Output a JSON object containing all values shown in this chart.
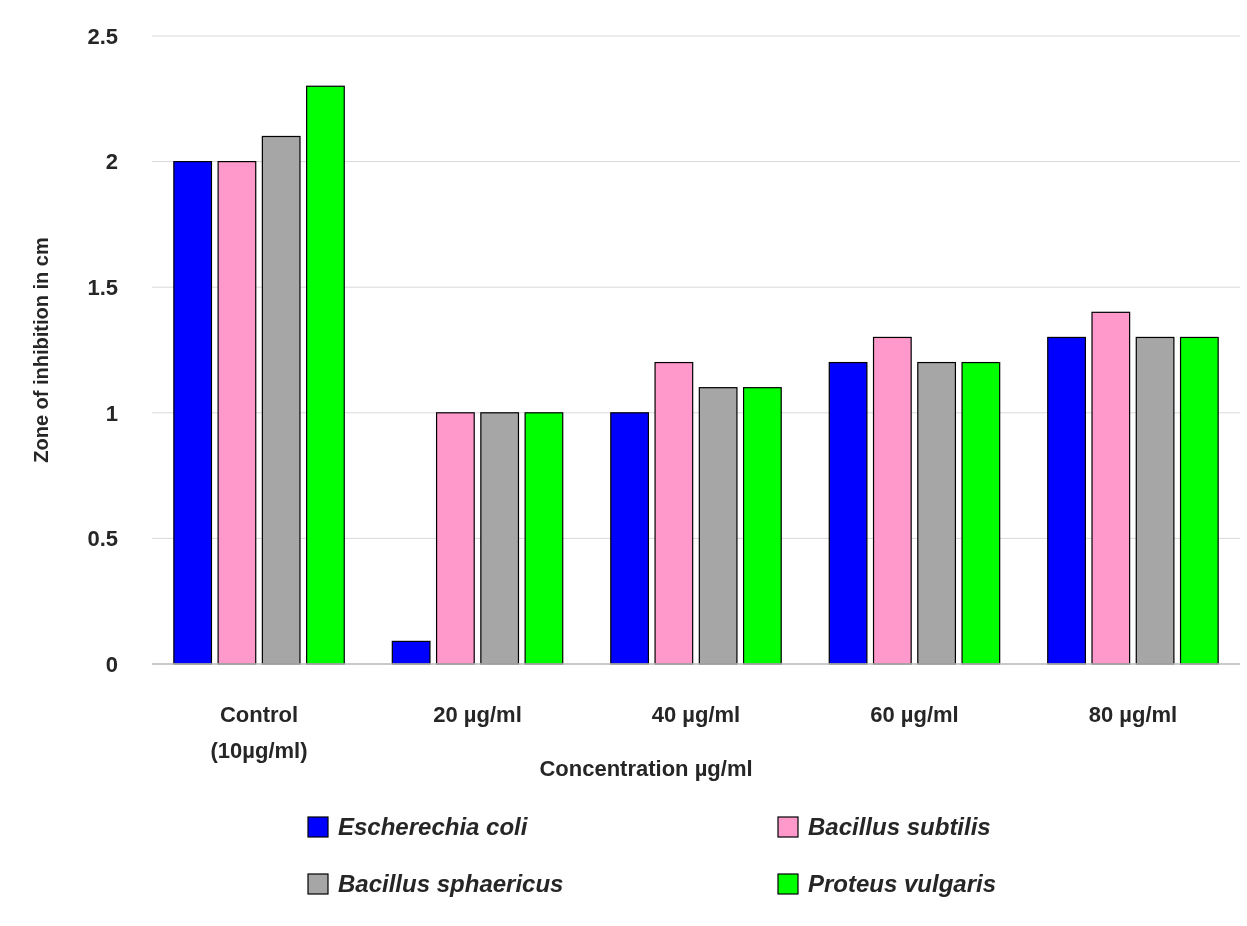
{
  "chart_data": {
    "type": "bar",
    "xlabel": "Concentration µg/ml",
    "ylabel": "Zone of inhibition in cm",
    "categories": [
      "Control (10µg/ml)",
      "20 µg/ml",
      "40 µg/ml",
      "60 µg/ml",
      "80 µg/ml"
    ],
    "series": [
      {
        "name": "Escherechia coli",
        "color": "#0000ff",
        "values": [
          2,
          0.09,
          1,
          1.2,
          1.3
        ]
      },
      {
        "name": "Bacillus subtilis",
        "color": "#ff99cc",
        "values": [
          2,
          1,
          1.2,
          1.3,
          1.4
        ]
      },
      {
        "name": "Bacillus sphaericus",
        "color": "#a6a6a6",
        "values": [
          2.1,
          1,
          1.1,
          1.2,
          1.3
        ]
      },
      {
        "name": "Proteus vulgaris",
        "color": "#00ff00",
        "values": [
          2.3,
          1,
          1.1,
          1.2,
          1.3
        ]
      }
    ],
    "ylim": [
      0,
      2.5
    ],
    "yticks": [
      0,
      0.5,
      1,
      1.5,
      2,
      2.5
    ],
    "grid": "y",
    "legend": "bottom"
  }
}
